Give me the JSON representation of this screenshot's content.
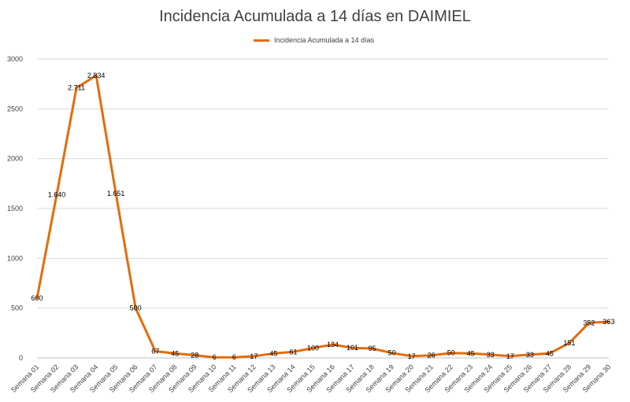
{
  "chart_data": {
    "type": "line",
    "title": "Incidencia Acumulada a 14 días  en DAIMIEL",
    "legend_position": "top-center",
    "grid": true,
    "ylim": [
      0,
      3000
    ],
    "yticks": [
      "0",
      "500",
      "1000",
      "1500",
      "2000",
      "2500",
      "3000"
    ],
    "categories": [
      "Semana 01",
      "Semana 02",
      "Semana 03",
      "Semana 04",
      "Semana 05",
      "Semana 06",
      "Semana 07",
      "Semana 08",
      "Semana 09",
      "Semana 10",
      "Semana 11",
      "Semana 12",
      "Semana 13",
      "Semana 14",
      "Semana 15",
      "Semana 16",
      "Semana 17",
      "Semana 18",
      "Semana 19",
      "Semana 20",
      "Semana 21",
      "Semana 22",
      "Semana 23",
      "Semana 24",
      "Semana 25",
      "Semana 26",
      "Semana 27",
      "Semana 28",
      "Semana 29",
      "Semana 30"
    ],
    "series": [
      {
        "name": "Incidencia Acumulada a 14 días",
        "color": "#E46C0A",
        "values": [
          600,
          1640,
          2711,
          2834,
          1651,
          500,
          67,
          45,
          28,
          6,
          6,
          17,
          45,
          61,
          100,
          134,
          101,
          95,
          50,
          17,
          26,
          50,
          45,
          33,
          17,
          33,
          45,
          151,
          352,
          363
        ],
        "labels": [
          "600",
          "1.640",
          "2.711",
          "2.834",
          "1.651",
          "500",
          "67",
          "45",
          "28",
          "6",
          "6",
          "17",
          "45",
          "61",
          "100",
          "134",
          "101",
          "95",
          "50",
          "17",
          "26",
          "50",
          "45",
          "33",
          "17",
          "33",
          "45",
          "151",
          "352",
          "363"
        ]
      }
    ]
  }
}
